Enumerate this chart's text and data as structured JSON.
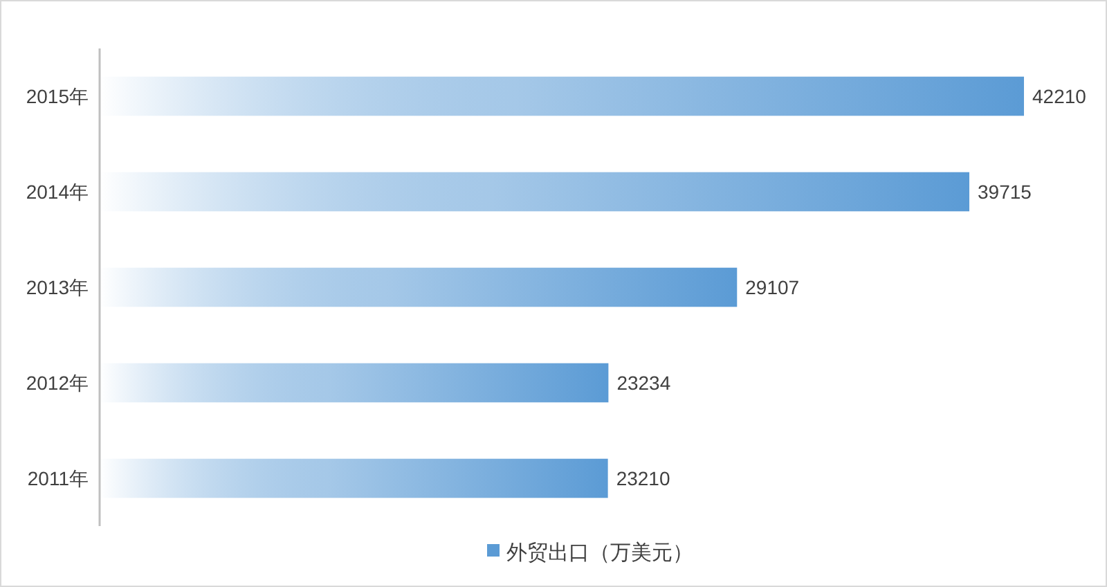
{
  "chart_data": {
    "type": "bar",
    "orientation": "horizontal",
    "categories": [
      "2015年",
      "2014年",
      "2013年",
      "2012年",
      "2011年"
    ],
    "series": [
      {
        "name": "外贸出口（万美元）",
        "color": "#5b9bd5",
        "values": [
          42210,
          39715,
          29107,
          23234,
          23210
        ]
      }
    ],
    "data_labels": true,
    "legend": "bottom"
  }
}
